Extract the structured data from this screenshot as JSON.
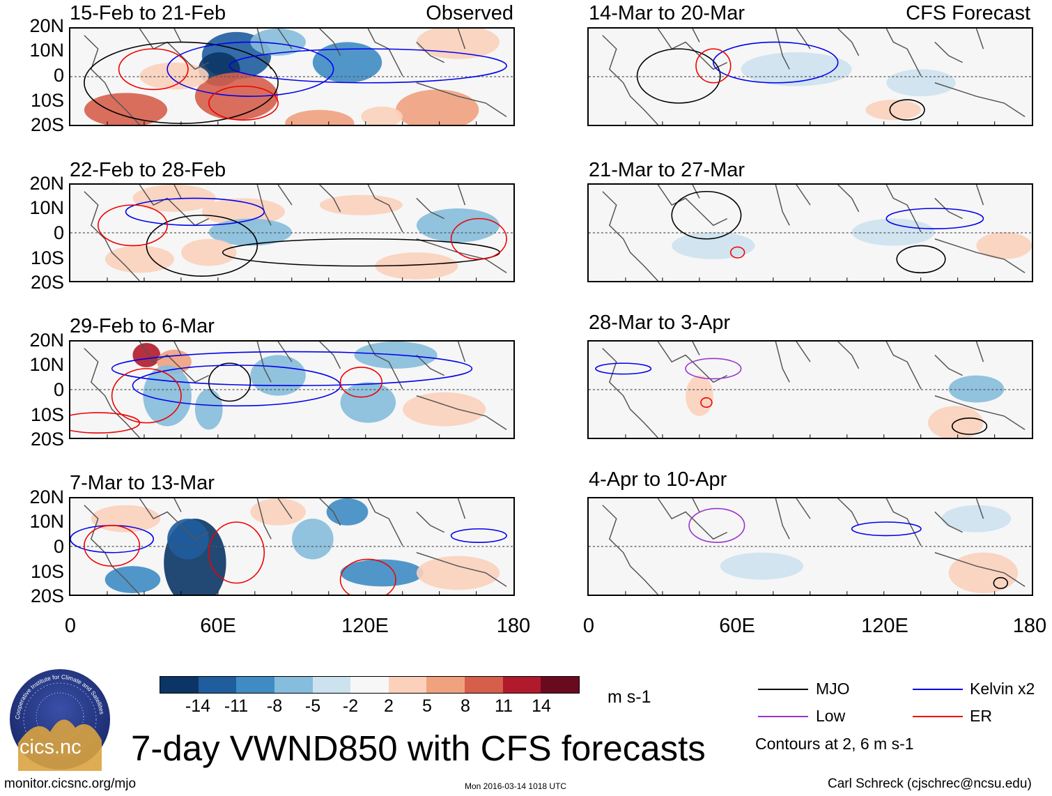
{
  "panels_left": [
    {
      "title": "15-Feb to 21-Feb",
      "tag": "Observed"
    },
    {
      "title": "22-Feb to 28-Feb",
      "tag": ""
    },
    {
      "title": "29-Feb to 6-Mar",
      "tag": ""
    },
    {
      "title": "7-Mar to 13-Mar",
      "tag": ""
    }
  ],
  "panels_right": [
    {
      "title": "14-Mar to 20-Mar",
      "tag": "CFS Forecast"
    },
    {
      "title": "21-Mar to 27-Mar",
      "tag": ""
    },
    {
      "title": "28-Mar to 3-Apr",
      "tag": ""
    },
    {
      "title": "4-Apr to 10-Apr",
      "tag": ""
    }
  ],
  "y_ticks": [
    "20N",
    "10N",
    "0",
    "10S",
    "20S"
  ],
  "x_ticks": [
    "0",
    "60E",
    "120E",
    "180"
  ],
  "colorbar": {
    "labels": [
      "-14",
      "-11",
      "-8",
      "-5",
      "-2",
      "2",
      "5",
      "8",
      "11",
      "14"
    ],
    "colors": [
      "#0b3566",
      "#1f5d9f",
      "#3f8cc4",
      "#86bcdc",
      "#cde2ef",
      "#f7f7f7",
      "#fbd1bc",
      "#f0a27f",
      "#d65f4c",
      "#b1192c",
      "#6a0a1f"
    ],
    "units": "m s-1"
  },
  "legend": {
    "items": [
      {
        "label": "MJO",
        "color": "#000000"
      },
      {
        "label": "Kelvin x2",
        "color": "#0000ee"
      },
      {
        "label": "Low",
        "color": "#9932cc"
      },
      {
        "label": "ER",
        "color": "#ee0000"
      }
    ],
    "note": "Contours at 2, 6 m s-1"
  },
  "logo_text": "cics.nc",
  "logo_ring": "Cooperative Institute for Climate and Satellites",
  "main_title": "7-day VWND850 with CFS forecasts",
  "footer": {
    "url": "monitor.cicsnc.org/mjo",
    "timestamp": "Mon 2016-03-14 1018 UTC",
    "author": "Carl Schreck (cjschrec@ncsu.edu)"
  }
}
